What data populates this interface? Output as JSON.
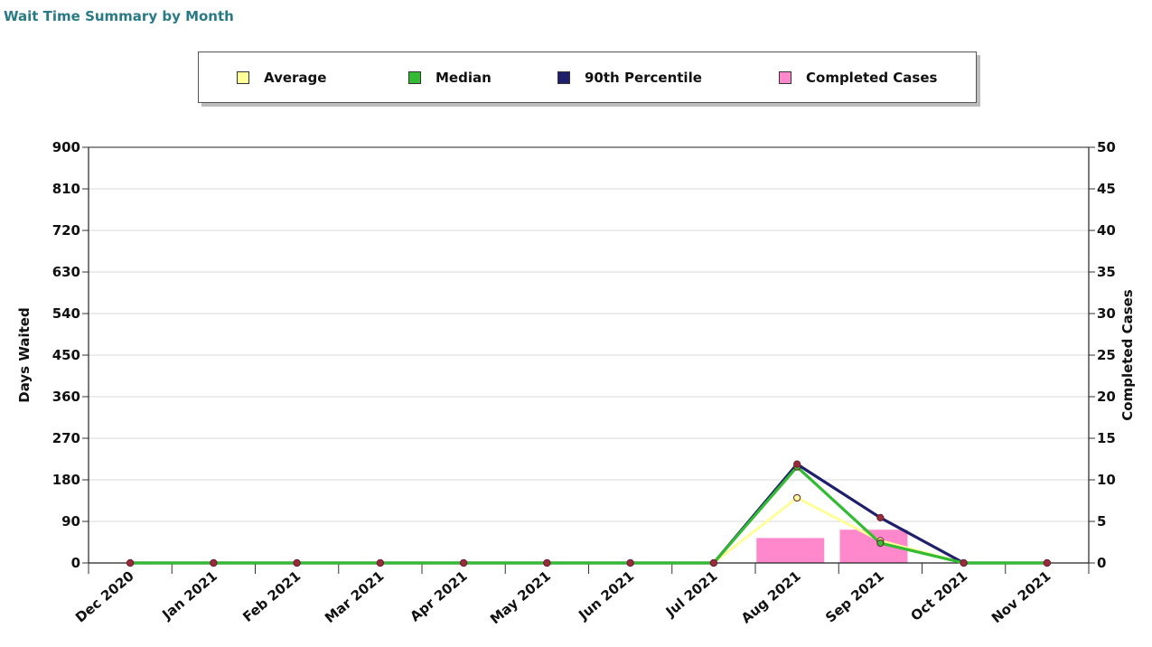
{
  "title": "Wait Time Summary by Month",
  "legend": [
    {
      "label": "Average",
      "color": "#ffff99"
    },
    {
      "label": "Median",
      "color": "#33bb33"
    },
    {
      "label": "90th Percentile",
      "color": "#1f1f6b"
    },
    {
      "label": "Completed Cases",
      "color": "#ff88cc"
    }
  ],
  "chart_data": {
    "type": "line",
    "categories": [
      "Dec 2020",
      "Jan 2021",
      "Feb 2021",
      "Mar 2021",
      "Apr 2021",
      "May 2021",
      "Jun 2021",
      "Jul 2021",
      "Aug 2021",
      "Sep 2021",
      "Oct 2021",
      "Nov 2021"
    ],
    "ylabel": "Days Waited",
    "ylabel_right": "Completed Cases",
    "ylim": [
      0,
      900
    ],
    "ylim_right": [
      0,
      50
    ],
    "yticks": [
      0,
      90,
      180,
      270,
      360,
      450,
      540,
      630,
      720,
      810,
      900
    ],
    "yticks_right": [
      0,
      5,
      10,
      15,
      20,
      25,
      30,
      35,
      40,
      45,
      50
    ],
    "grid": true,
    "legend_position": "top",
    "series": [
      {
        "name": "Average",
        "color": "#ffff99",
        "axis": "left",
        "kind": "line",
        "values": [
          0,
          0,
          0,
          0,
          0,
          0,
          0,
          0,
          141,
          48,
          0,
          0
        ]
      },
      {
        "name": "Median",
        "color": "#33bb33",
        "axis": "left",
        "kind": "line",
        "values": [
          0,
          0,
          0,
          0,
          0,
          0,
          0,
          0,
          208,
          43,
          0,
          0
        ]
      },
      {
        "name": "90th Percentile",
        "color": "#1f1f6b",
        "axis": "left",
        "kind": "line",
        "values": [
          0,
          0,
          0,
          0,
          0,
          0,
          0,
          0,
          214,
          98,
          0,
          0
        ]
      },
      {
        "name": "Completed Cases",
        "color": "#ff88cc",
        "axis": "right",
        "kind": "bar",
        "values": [
          0,
          0,
          0,
          0,
          0,
          0,
          0,
          0,
          3,
          4,
          0,
          0
        ]
      }
    ]
  }
}
